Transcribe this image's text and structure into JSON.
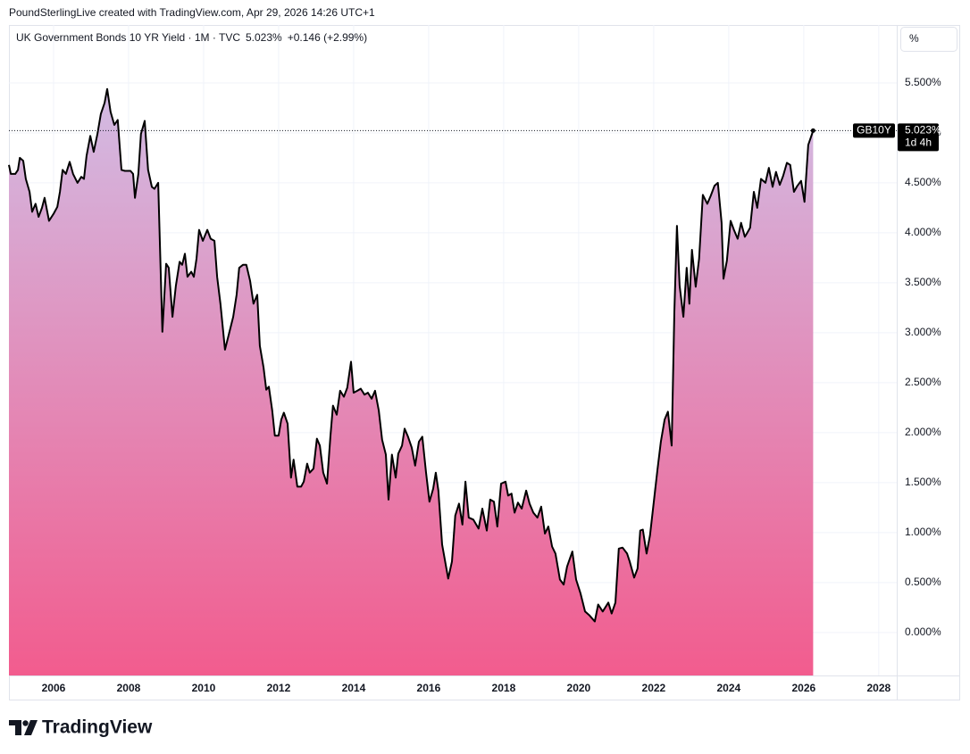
{
  "header": "PoundSterlingLive created with TradingView.com, Apr 29, 2026 14:26 UTC+1",
  "logo": "TradingView",
  "chart_data": {
    "type": "area",
    "title": "UK Government Bonds 10 YR Yield · 1M · TVC",
    "change": "+0.146 (+2.99%)",
    "unit": "%",
    "countdown": "1d 4h",
    "last_price": {
      "value": 5.023,
      "label": "5.023%"
    },
    "x": [
      2004.81,
      2004.86,
      2004.98,
      2005.05,
      2005.1,
      2005.19,
      2005.26,
      2005.36,
      2005.43,
      2005.52,
      2005.6,
      2005.69,
      2005.76,
      2005.88,
      2006.0,
      2006.1,
      2006.17,
      2006.24,
      2006.33,
      2006.43,
      2006.52,
      2006.64,
      2006.74,
      2006.81,
      2006.88,
      2006.98,
      2007.07,
      2007.17,
      2007.26,
      2007.36,
      2007.43,
      2007.52,
      2007.62,
      2007.71,
      2007.81,
      2007.9,
      2008.05,
      2008.12,
      2008.17,
      2008.26,
      2008.33,
      2008.43,
      2008.52,
      2008.62,
      2008.69,
      2008.79,
      2008.9,
      2009.0,
      2009.07,
      2009.17,
      2009.26,
      2009.36,
      2009.43,
      2009.5,
      2009.57,
      2009.67,
      2009.74,
      2009.81,
      2009.88,
      2009.98,
      2010.1,
      2010.19,
      2010.29,
      2010.36,
      2010.45,
      2010.57,
      2010.67,
      2010.79,
      2010.88,
      2010.95,
      2011.05,
      2011.14,
      2011.24,
      2011.33,
      2011.43,
      2011.5,
      2011.6,
      2011.67,
      2011.74,
      2011.83,
      2011.9,
      2012.0,
      2012.07,
      2012.14,
      2012.24,
      2012.33,
      2012.4,
      2012.5,
      2012.6,
      2012.67,
      2012.76,
      2012.83,
      2012.93,
      2013.02,
      2013.1,
      2013.19,
      2013.29,
      2013.38,
      2013.45,
      2013.55,
      2013.64,
      2013.74,
      2013.83,
      2013.93,
      2014.0,
      2014.1,
      2014.19,
      2014.29,
      2014.38,
      2014.48,
      2014.57,
      2014.67,
      2014.76,
      2014.86,
      2014.93,
      2015.02,
      2015.12,
      2015.19,
      2015.29,
      2015.36,
      2015.45,
      2015.55,
      2015.64,
      2015.74,
      2015.83,
      2015.93,
      2016.02,
      2016.12,
      2016.19,
      2016.26,
      2016.36,
      2016.52,
      2016.62,
      2016.71,
      2016.81,
      2016.9,
      2016.98,
      2017.07,
      2017.19,
      2017.33,
      2017.43,
      2017.55,
      2017.64,
      2017.74,
      2017.83,
      2017.93,
      2018.05,
      2018.12,
      2018.21,
      2018.29,
      2018.38,
      2018.48,
      2018.6,
      2018.69,
      2018.79,
      2018.9,
      2019.0,
      2019.1,
      2019.19,
      2019.29,
      2019.38,
      2019.5,
      2019.6,
      2019.69,
      2019.83,
      2019.93,
      2020.05,
      2020.17,
      2020.29,
      2020.43,
      2020.52,
      2020.64,
      2020.79,
      2020.88,
      2020.98,
      2021.07,
      2021.17,
      2021.29,
      2021.36,
      2021.48,
      2021.57,
      2021.64,
      2021.71,
      2021.81,
      2021.9,
      2022.0,
      2022.1,
      2022.19,
      2022.29,
      2022.38,
      2022.48,
      2022.55,
      2022.62,
      2022.69,
      2022.79,
      2022.88,
      2022.95,
      2023.02,
      2023.12,
      2023.21,
      2023.31,
      2023.43,
      2023.52,
      2023.62,
      2023.71,
      2023.81,
      2023.86,
      2023.95,
      2024.05,
      2024.14,
      2024.24,
      2024.33,
      2024.43,
      2024.48,
      2024.57,
      2024.67,
      2024.76,
      2024.86,
      2024.98,
      2025.07,
      2025.17,
      2025.26,
      2025.36,
      2025.45,
      2025.55,
      2025.64,
      2025.74,
      2025.83,
      2025.93,
      2026.02,
      2026.12,
      2026.25
    ],
    "series": [
      {
        "name": "GB10Y",
        "color": "#000000",
        "values": [
          4.68,
          4.59,
          4.59,
          4.63,
          4.75,
          4.72,
          4.54,
          4.41,
          4.21,
          4.29,
          4.16,
          4.25,
          4.35,
          4.12,
          4.19,
          4.26,
          4.41,
          4.63,
          4.59,
          4.71,
          4.59,
          4.5,
          4.56,
          4.54,
          4.77,
          4.97,
          4.81,
          4.99,
          5.19,
          5.3,
          5.44,
          5.21,
          5.08,
          5.13,
          4.63,
          4.62,
          4.62,
          4.59,
          4.35,
          4.59,
          4.99,
          5.12,
          4.63,
          4.46,
          4.44,
          4.5,
          3.01,
          3.69,
          3.65,
          3.16,
          3.47,
          3.71,
          3.68,
          3.79,
          3.56,
          3.61,
          3.56,
          3.74,
          4.03,
          3.92,
          4.03,
          3.94,
          3.92,
          3.56,
          3.29,
          2.83,
          2.98,
          3.16,
          3.38,
          3.65,
          3.68,
          3.68,
          3.52,
          3.29,
          3.38,
          2.87,
          2.65,
          2.43,
          2.46,
          2.22,
          1.97,
          1.97,
          2.13,
          2.2,
          2.09,
          1.55,
          1.73,
          1.46,
          1.46,
          1.51,
          1.69,
          1.6,
          1.64,
          1.94,
          1.87,
          1.6,
          1.49,
          1.96,
          2.27,
          2.18,
          2.42,
          2.36,
          2.45,
          2.71,
          2.4,
          2.42,
          2.44,
          2.38,
          2.4,
          2.34,
          2.42,
          2.22,
          1.93,
          1.78,
          1.33,
          1.78,
          1.55,
          1.79,
          1.87,
          2.04,
          1.96,
          1.85,
          1.67,
          1.91,
          1.96,
          1.6,
          1.31,
          1.44,
          1.6,
          1.42,
          0.88,
          0.54,
          0.71,
          1.17,
          1.29,
          1.08,
          1.51,
          1.15,
          1.13,
          1.04,
          1.24,
          1.02,
          1.33,
          1.31,
          1.06,
          1.49,
          1.51,
          1.37,
          1.39,
          1.2,
          1.3,
          1.24,
          1.42,
          1.29,
          1.2,
          1.15,
          1.26,
          0.99,
          1.06,
          0.86,
          0.79,
          0.53,
          0.48,
          0.66,
          0.81,
          0.53,
          0.39,
          0.21,
          0.17,
          0.11,
          0.28,
          0.21,
          0.3,
          0.19,
          0.3,
          0.84,
          0.85,
          0.79,
          0.71,
          0.55,
          0.64,
          1.02,
          1.03,
          0.79,
          0.97,
          1.3,
          1.63,
          1.91,
          2.13,
          2.21,
          1.87,
          3.21,
          4.07,
          3.47,
          3.16,
          3.65,
          3.29,
          3.83,
          3.46,
          3.74,
          4.38,
          4.29,
          4.37,
          4.47,
          4.5,
          4.1,
          3.54,
          3.72,
          4.12,
          4.03,
          3.94,
          4.1,
          3.96,
          3.99,
          4.05,
          4.41,
          4.25,
          4.54,
          4.5,
          4.65,
          4.46,
          4.61,
          4.48,
          4.57,
          4.7,
          4.68,
          4.41,
          4.47,
          4.52,
          4.31,
          4.88,
          5.023
        ]
      }
    ],
    "xlim": [
      2004.81,
      2028.48
    ],
    "xticks": [
      2006,
      2008,
      2010,
      2012,
      2014,
      2016,
      2018,
      2020,
      2022,
      2024,
      2026,
      2028
    ],
    "ylim": [
      -0.43,
      6.08
    ],
    "yticks": [
      {
        "value": 0,
        "label": "0.000%"
      },
      {
        "value": 0.5,
        "label": "0.500%"
      },
      {
        "value": 1,
        "label": "1.000%"
      },
      {
        "value": 1.5,
        "label": "1.500%"
      },
      {
        "value": 2,
        "label": "2.000%"
      },
      {
        "value": 2.5,
        "label": "2.500%"
      },
      {
        "value": 3,
        "label": "3.000%"
      },
      {
        "value": 3.5,
        "label": "3.500%"
      },
      {
        "value": 4,
        "label": "4.000%"
      },
      {
        "value": 4.5,
        "label": "4.500%"
      },
      {
        "value": 5,
        "label": "5.000%"
      },
      {
        "value": 5.5,
        "label": "5.500%"
      }
    ],
    "grid": true,
    "fill_top": "#d2bce4",
    "fill_bottom": "#f25c8e"
  }
}
